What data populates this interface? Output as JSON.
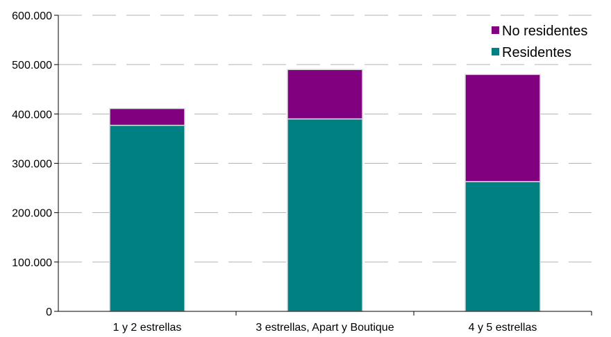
{
  "chart_data": {
    "type": "bar",
    "stacked": true,
    "categories": [
      "1 y 2 estrellas",
      "3 estrellas, Apart y Boutique",
      "4 y 5 estrellas"
    ],
    "series": [
      {
        "name": "Residentes",
        "color": "#008080",
        "values": [
          377000,
          390000,
          263000
        ]
      },
      {
        "name": "No residentes",
        "color": "#800080",
        "values": [
          34000,
          100000,
          217000
        ]
      }
    ],
    "ylim": [
      0,
      600000
    ],
    "yticks": [
      0,
      100000,
      200000,
      300000,
      400000,
      500000,
      600000
    ],
    "ytick_labels": [
      "0",
      "100.000",
      "200.000",
      "300.000",
      "400.000",
      "500.000",
      "600.000"
    ],
    "legend_order": [
      "No residentes",
      "Residentes"
    ],
    "legend_position": "top-right",
    "grid": "horizontal dashed",
    "title": "",
    "xlabel": "",
    "ylabel": ""
  }
}
